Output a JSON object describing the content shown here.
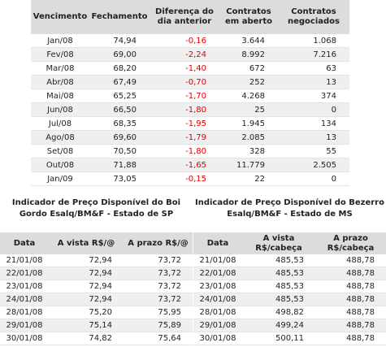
{
  "futures": {
    "headers": [
      "Vencimento",
      "Fechamento",
      "Diferença do dia anterior",
      "Contratos em aberto",
      "Contratos negociados"
    ],
    "rows": [
      [
        "Jan/08",
        "74,94",
        "-0,16",
        "3.644",
        "1.068"
      ],
      [
        "Fev/08",
        "69,00",
        "-2,24",
        "8.992",
        "7.216"
      ],
      [
        "Mar/08",
        "68,20",
        "-1,40",
        "672",
        "63"
      ],
      [
        "Abr/08",
        "67,49",
        "-0,70",
        "252",
        "13"
      ],
      [
        "Mai/08",
        "65,25",
        "-1,70",
        "4.268",
        "374"
      ],
      [
        "Jun/08",
        "66,50",
        "-1,80",
        "25",
        "0"
      ],
      [
        "Jul/08",
        "68,35",
        "-1,95",
        "1.945",
        "134"
      ],
      [
        "Ago/08",
        "69,60",
        "-1,79",
        "2.085",
        "13"
      ],
      [
        "Set/08",
        "70,50",
        "-1,80",
        "328",
        "55"
      ],
      [
        "Out/08",
        "71,88",
        "-1,65",
        "11.779",
        "2.505"
      ],
      [
        "Jan/09",
        "73,05",
        "-0,15",
        "22",
        "0"
      ]
    ]
  },
  "boi": {
    "title": "Indicador de Preço Disponível do Boi Gordo Esalq/BM&F - Estado de SP",
    "headers": [
      "Data",
      "A vista R$/@",
      "A prazo R$/@"
    ],
    "rows": [
      [
        "21/01/08",
        "72,94",
        "73,72"
      ],
      [
        "22/01/08",
        "72,94",
        "73,72"
      ],
      [
        "23/01/08",
        "72,94",
        "73,72"
      ],
      [
        "24/01/08",
        "72,94",
        "73,72"
      ],
      [
        "28/01/08",
        "75,20",
        "75,95"
      ],
      [
        "29/01/08",
        "75,14",
        "75,89"
      ],
      [
        "30/01/08",
        "74,82",
        "75,64"
      ]
    ]
  },
  "bezerro": {
    "title": "Indicador de Preço Disponível do Bezerro Esalq/BM&F - Estado de MS",
    "headers": [
      "Data",
      "A vista R$/cabeça",
      "A prazo R$/cabeça"
    ],
    "rows": [
      [
        "21/01/08",
        "485,53",
        "488,78"
      ],
      [
        "22/01/08",
        "485,53",
        "488,78"
      ],
      [
        "23/01/08",
        "485,53",
        "488,78"
      ],
      [
        "24/01/08",
        "485,53",
        "488,78"
      ],
      [
        "28/01/08",
        "498,82",
        "488,78"
      ],
      [
        "29/01/08",
        "499,24",
        "488,78"
      ],
      [
        "30/01/08",
        "500,11",
        "488,78"
      ]
    ]
  }
}
